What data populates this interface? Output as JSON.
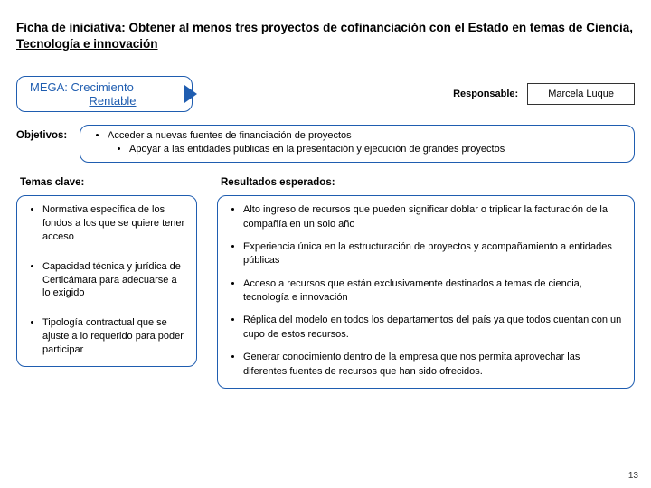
{
  "title": "Ficha de iniciativa: Obtener al menos tres proyectos de cofinanciación con el Estado en temas de Ciencia, Tecnología e innovación",
  "mega": {
    "line1": "MEGA: Crecimiento",
    "line2": "Rentable"
  },
  "responsable": {
    "label": "Responsable:",
    "name": "Marcela Luque"
  },
  "objetivos": {
    "label": "Objetivos:",
    "items": [
      "Acceder a nuevas fuentes de financiación de proyectos",
      "Apoyar a las entidades públicas en la presentación y ejecución de grandes proyectos"
    ]
  },
  "temas": {
    "header": "Temas clave:",
    "items": [
      "Normativa específica de los fondos a los que se quiere tener acceso",
      "Capacidad técnica y jurídica de Certicámara para adecuarse a lo exigido",
      "Tipología contractual que se ajuste a lo requerido para poder participar"
    ]
  },
  "resultados": {
    "header": "Resultados esperados:",
    "items": [
      "Alto ingreso de recursos que pueden significar doblar o triplicar la facturación de la compañía en un solo año",
      "Experiencia única en la estructuración de proyectos y acompañamiento a entidades públicas",
      "Acceso a recursos que están exclusivamente destinados a temas de ciencia, tecnología e innovación",
      "Réplica del modelo en todos los departamentos del país ya que todos cuentan con un cupo de estos recursos.",
      "Generar conocimiento dentro de la empresa que nos permita aprovechar las diferentes fuentes de recursos que han sido ofrecidos."
    ]
  },
  "page_number": "13",
  "colors": {
    "accent": "#1f5db0",
    "text": "#000000",
    "bg": "#ffffff"
  }
}
